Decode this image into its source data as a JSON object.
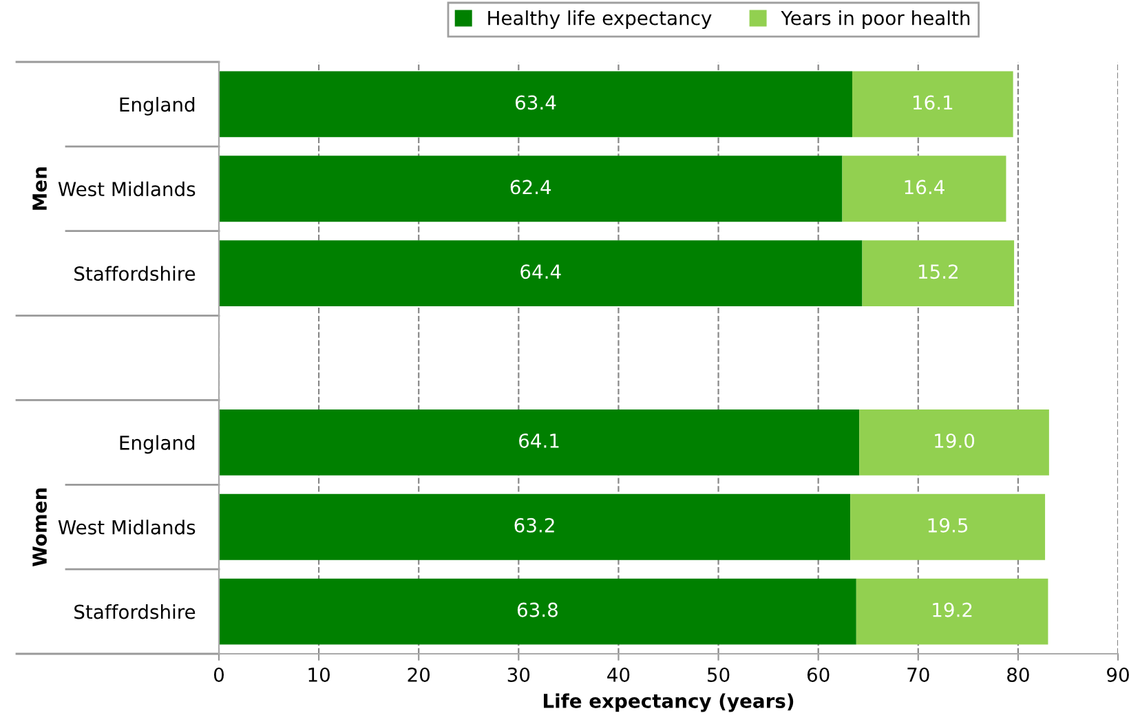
{
  "chart_data": {
    "type": "bar",
    "orientation": "horizontal",
    "stacked": true,
    "categories": [
      "England",
      "West Midlands",
      "Staffordshire",
      null,
      "England",
      "West Midlands",
      "Staffordshire"
    ],
    "series": [
      {
        "name": "Healthy life expectancy",
        "color": "#008000",
        "values": [
          63.4,
          62.4,
          64.4,
          null,
          64.1,
          63.2,
          63.8
        ],
        "value_labels": [
          "63.4",
          "62.4",
          "64.4",
          null,
          "64.1",
          "63.2",
          "63.8"
        ]
      },
      {
        "name": "Years in poor health",
        "color": "#92d050",
        "values": [
          16.1,
          16.4,
          15.2,
          null,
          19.0,
          19.5,
          19.2
        ],
        "value_labels": [
          "16.1",
          "16.4",
          "15.2",
          null,
          "19.0",
          "19.5",
          "19.2"
        ]
      }
    ],
    "xlabel": "Life expectancy (years)",
    "xlim": [
      0,
      90
    ],
    "xticks": [
      0,
      10,
      20,
      30,
      40,
      50,
      60,
      70,
      80,
      90
    ],
    "annotations": [
      "Men",
      "Women"
    ],
    "grid": "x",
    "legend": "top"
  }
}
